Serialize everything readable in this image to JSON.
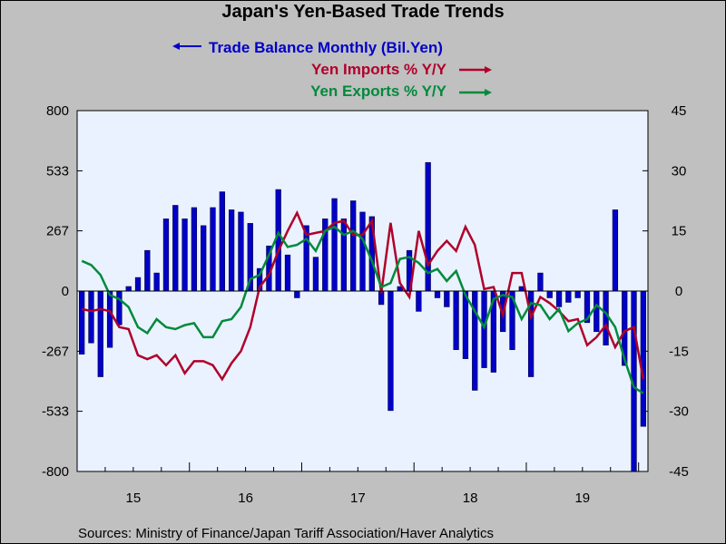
{
  "chart_data": {
    "type": "bar+line",
    "title": "Japan's Yen-Based Trade Trends",
    "legend": [
      {
        "label": "Trade Balance Monthly (Bil.Yen)",
        "color": "#0000c8",
        "axis": "left",
        "arrow": "left"
      },
      {
        "label": "Yen Imports % Y/Y",
        "color": "#b0002a",
        "axis": "right",
        "arrow": "right"
      },
      {
        "label": "Yen Exports % Y/Y",
        "color": "#008a3c",
        "axis": "right",
        "arrow": "right"
      }
    ],
    "source": "Sources:  Ministry of Finance/Japan Tariff Association/Haver Analytics",
    "left_axis": {
      "ticks": [
        800,
        533,
        267,
        0,
        -267,
        -533,
        -800
      ],
      "labels": [
        "800",
        "533",
        "267",
        "0",
        "-267",
        "-533",
        "-800"
      ],
      "ylim": [
        -800,
        800
      ]
    },
    "right_axis": {
      "ticks": [
        45,
        30,
        15,
        0,
        -15,
        -30,
        -45
      ],
      "labels": [
        "45",
        "30",
        "15",
        "0",
        "-15",
        "-30",
        "-45"
      ],
      "ylim": [
        -45,
        45
      ]
    },
    "x_labels": [
      "15",
      "16",
      "17",
      "18",
      "19"
    ],
    "months_start": "2015-01",
    "series": [
      {
        "name": "Trade Balance Monthly (Bil.Yen)",
        "type": "bar",
        "values": [
          -280,
          -230,
          -380,
          -250,
          -150,
          20,
          60,
          180,
          80,
          320,
          380,
          320,
          370,
          290,
          370,
          440,
          360,
          350,
          300,
          100,
          200,
          450,
          160,
          -30,
          290,
          150,
          320,
          410,
          320,
          400,
          350,
          330,
          -60,
          -530,
          20,
          180,
          -90,
          570,
          -30,
          -70,
          -260,
          -300,
          -440,
          -340,
          -360,
          -180,
          -260,
          20,
          -380,
          80,
          -30,
          -70,
          -50,
          -30,
          -140,
          -180,
          -240,
          360,
          -330,
          -800,
          -600
        ]
      },
      {
        "name": "Yen Imports % Y/Y",
        "type": "line",
        "values": [
          -4.5,
          -5,
          -4.5,
          -5,
          -9,
          -9.5,
          -16,
          -17,
          -16,
          -18.5,
          -16,
          -20.5,
          -17.5,
          -17.5,
          -18.5,
          -22,
          -18,
          -15,
          -9,
          1,
          4,
          10,
          15,
          19.5,
          14,
          14.5,
          15,
          17,
          17.5,
          14,
          14,
          17.5,
          -0.5,
          17,
          2,
          -1.5,
          15,
          6.5,
          10,
          12.5,
          10,
          16,
          11.5,
          0.5,
          1,
          -6,
          4.5,
          4.5,
          -6.5,
          -1.5,
          -3,
          -5,
          -7.5,
          -7,
          -13.5,
          -11.5,
          -8.5,
          -14,
          -10,
          -9,
          -22
        ]
      },
      {
        "name": "Yen Exports % Y/Y",
        "type": "line",
        "values": [
          7.5,
          6.5,
          4,
          -1,
          -2,
          -4,
          -9,
          -10.5,
          -7,
          -9,
          -9.5,
          -8.5,
          -8,
          -11.5,
          -11.5,
          -7.5,
          -7,
          -4,
          3,
          4,
          9,
          14.5,
          11,
          11.5,
          13,
          10,
          15,
          16,
          14,
          15,
          13,
          7.5,
          1,
          2,
          8,
          8.5,
          7,
          4.5,
          5.5,
          2.5,
          5,
          -1,
          -5,
          -9,
          -2,
          -1,
          -1.5,
          -7,
          -3,
          -3.5,
          -7,
          -4.5,
          -10,
          -8,
          -7,
          -3.5,
          -5.5,
          -9,
          -17,
          -24,
          -25.5
        ]
      }
    ]
  }
}
